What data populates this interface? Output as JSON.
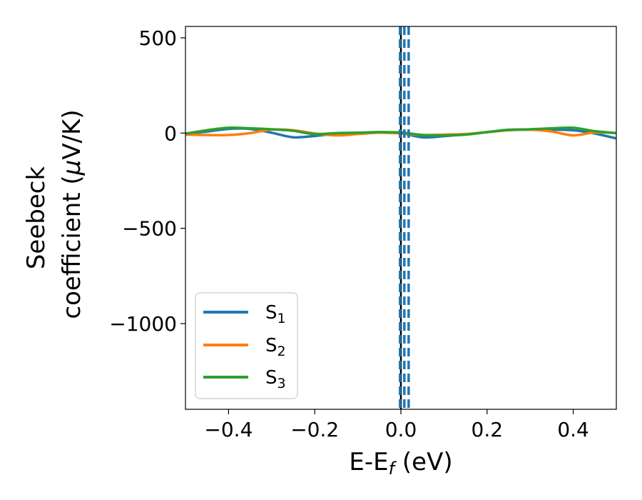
{
  "chart_data": {
    "type": "line",
    "title": "",
    "xlabel": {
      "main": "E-E",
      "sub": "f",
      "tail": " (eV)"
    },
    "ylabel": {
      "line1": "Seebeck",
      "line2_a": "coefficient  (",
      "line2_mu": "μ",
      "line2_b": "V/K)"
    },
    "xlim": [
      -0.5,
      0.5
    ],
    "ylim": [
      -1450,
      560
    ],
    "xticks": [
      {
        "value": -0.4,
        "label": "−0.4"
      },
      {
        "value": -0.2,
        "label": "−0.2"
      },
      {
        "value": 0.0,
        "label": "0.0"
      },
      {
        "value": 0.2,
        "label": "0.2"
      },
      {
        "value": 0.4,
        "label": "0.4"
      }
    ],
    "yticks": [
      {
        "value": 500,
        "label": "500"
      },
      {
        "value": 0,
        "label": "0"
      },
      {
        "value": -500,
        "label": "−500"
      },
      {
        "value": -1000,
        "label": "−1000"
      }
    ],
    "grid": false,
    "legend_position": "lower-left",
    "vertical_lines": [
      {
        "x": 0.0,
        "color": "#000000",
        "style": "solid"
      },
      {
        "x": -0.002,
        "color": "#1f77b4",
        "style": "dashed"
      },
      {
        "x": 0.008,
        "color": "#1f77b4",
        "style": "dashed"
      },
      {
        "x": 0.018,
        "color": "#1f77b4",
        "style": "dashed"
      }
    ],
    "series": [
      {
        "name": "S",
        "sub": "1",
        "color": "#1f77b4",
        "x": [
          -0.5,
          -0.45,
          -0.4,
          -0.35,
          -0.3,
          -0.25,
          -0.2,
          -0.15,
          -0.1,
          -0.05,
          0.0,
          0.05,
          0.1,
          0.15,
          0.2,
          0.25,
          0.3,
          0.35,
          0.4,
          0.45,
          0.5
        ],
        "y": [
          -2,
          8,
          22,
          22,
          2,
          -22,
          -15,
          -3,
          0,
          5,
          0,
          -22,
          -16,
          -6,
          5,
          17,
          18,
          18,
          15,
          -2,
          -28
        ]
      },
      {
        "name": "S",
        "sub": "2",
        "color": "#ff7f0e",
        "x": [
          -0.5,
          -0.45,
          -0.4,
          -0.35,
          -0.3,
          -0.25,
          -0.2,
          -0.15,
          -0.1,
          -0.05,
          0.0,
          0.05,
          0.1,
          0.15,
          0.2,
          0.25,
          0.3,
          0.35,
          0.4,
          0.45,
          0.5
        ],
        "y": [
          -8,
          -10,
          -10,
          0,
          18,
          15,
          -2,
          -12,
          -5,
          2,
          -2,
          -10,
          -8,
          -5,
          5,
          15,
          18,
          8,
          -12,
          3,
          0
        ]
      },
      {
        "name": "S",
        "sub": "3",
        "color": "#2ca02c",
        "x": [
          -0.5,
          -0.45,
          -0.4,
          -0.35,
          -0.3,
          -0.25,
          -0.2,
          -0.15,
          -0.1,
          -0.05,
          0.0,
          0.05,
          0.1,
          0.15,
          0.2,
          0.25,
          0.3,
          0.35,
          0.4,
          0.45,
          0.5
        ],
        "y": [
          -3,
          15,
          28,
          25,
          20,
          12,
          -5,
          0,
          2,
          5,
          3,
          -10,
          -12,
          -8,
          5,
          17,
          20,
          25,
          28,
          10,
          0
        ]
      }
    ]
  }
}
